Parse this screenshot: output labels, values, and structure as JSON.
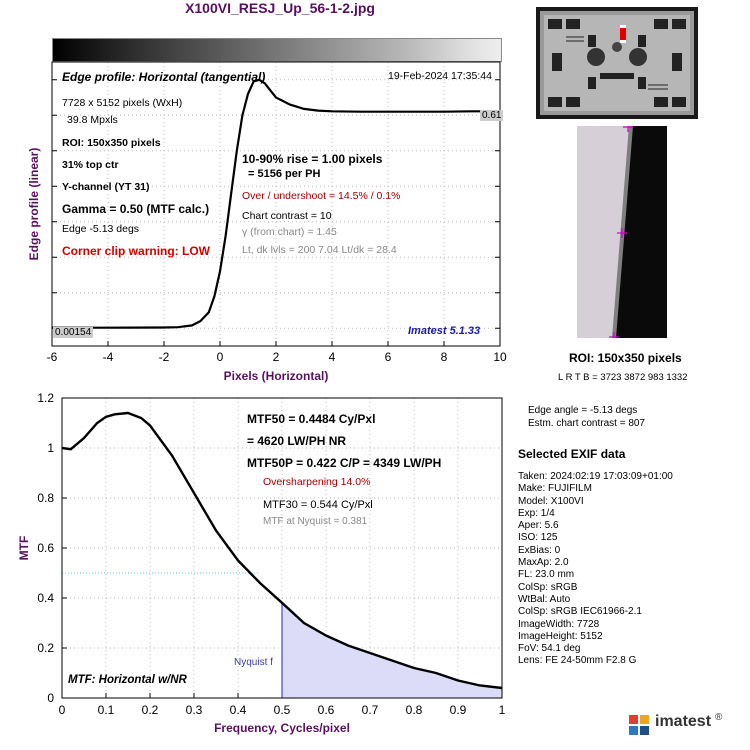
{
  "title": "X100VI_RESJ_Up_56-1-2.jpg",
  "edge": {
    "header": "Edge profile: Horizontal (tangential)",
    "datetime": "19-Feb-2024 17:35:44",
    "pixels": "7728 x 5152 pixels (WxH)",
    "mpxls": "39.8 Mpxls",
    "roi": "ROI:  150x350 pixels",
    "location": "31% top ctr",
    "channel": "Y-channel  (YT 31)",
    "gamma": "Gamma = 0.50 (MTF calc.)",
    "edge_angle": "Edge  -5.13 degs",
    "clip": "Corner clip warning: LOW",
    "rise": "10-90% rise = 1.00 pixels",
    "per_ph": "=   5156 per PH",
    "overshoot": "Over / undershoot = 14.5% /  0.1%",
    "contrast": "Chart contrast = 10",
    "gamma_chart": "γ (from chart) =  1.45",
    "levels": "Lt, dk lvls = 200  7.04  Lt/dk = 28.4",
    "version": "Imatest 5.1.33",
    "high_level": "0.61",
    "low_level": "0.00154"
  },
  "mtf": {
    "mtf50": "MTF50 = 0.4484 Cy/Pxl",
    "lwph": "= 4620 LW/PH  NR",
    "mtf50p": "MTF50P = 0.422 C/P = 4349 LW/PH",
    "oversharp": "Oversharpening 14.0%",
    "mtf30": "MTF30 = 0.544 Cy/Pxl",
    "nyq": "MTF at Nyquist = 0.381",
    "label": "MTF: Horizontal w/NR",
    "nyquist_label": "Nyquist f"
  },
  "roi_panel": {
    "roi": "ROI:  150x350 pixels",
    "coords": "L R  T B = 3723 3872  983 1332",
    "edge_angle": "Edge angle = -5.13 degs",
    "chart_contrast": "Estm. chart contrast = 807"
  },
  "exif": {
    "header": "Selected EXIF data",
    "lines": [
      "Taken: 2024:02:19 17:03:09+01:00",
      "Make:  FUJIFILM",
      "Model:  X100VI",
      "Exp:     1/4",
      "Aper:   5.6",
      "ISO:     125",
      "ExBias: 0",
      "MaxAp: 2.0",
      "FL:      23.0 mm",
      "ColSp: sRGB",
      "WtBal: Auto",
      "ColSp: sRGB IEC61966-2.1",
      "ImageWidth:    7728",
      "ImageHeight:   5152",
      "FoV:    54.1 deg",
      "Lens:  FE 24-50mm F2.8 G"
    ]
  },
  "logo": {
    "text": "imatest",
    "mark": "®"
  },
  "chart_data": [
    {
      "type": "line",
      "title": "",
      "xlabel": "Pixels (Horizontal)",
      "ylabel": "Edge profile (linear)",
      "xlim": [
        -6,
        10
      ],
      "xticks": [
        -6,
        -4,
        -2,
        0,
        2,
        4,
        6,
        8,
        10
      ],
      "series": [
        {
          "x": [
            -6,
            -4,
            -2,
            -1.5,
            -1,
            -0.7,
            -0.4,
            -0.2,
            0,
            0.2,
            0.4,
            0.6,
            0.8,
            1.0,
            1.2,
            1.4,
            1.6,
            1.8,
            2.0,
            2.5,
            3,
            3.5,
            4,
            5,
            6,
            7,
            8,
            9,
            10
          ],
          "y": [
            0.0015,
            0.0015,
            0.002,
            0.003,
            0.008,
            0.02,
            0.045,
            0.09,
            0.16,
            0.26,
            0.38,
            0.5,
            0.6,
            0.66,
            0.695,
            0.7,
            0.69,
            0.67,
            0.65,
            0.63,
            0.618,
            0.613,
            0.611,
            0.61,
            0.61,
            0.61,
            0.61,
            0.611,
            0.611
          ]
        }
      ],
      "grid": true
    },
    {
      "type": "line",
      "title": "",
      "xlabel": "Frequency, Cycles/pixel",
      "ylabel": "MTF",
      "xlim": [
        0,
        1
      ],
      "ylim": [
        0,
        1.2
      ],
      "xticks": [
        0,
        0.1,
        0.2,
        0.3,
        0.4,
        0.5,
        0.6,
        0.7,
        0.8,
        0.9,
        1
      ],
      "yticks": [
        0,
        0.2,
        0.4,
        0.6,
        0.8,
        1,
        1.2
      ],
      "series": [
        {
          "x": [
            0,
            0.02,
            0.05,
            0.08,
            0.1,
            0.12,
            0.15,
            0.18,
            0.2,
            0.25,
            0.3,
            0.35,
            0.4,
            0.45,
            0.5,
            0.55,
            0.6,
            0.65,
            0.7,
            0.75,
            0.8,
            0.85,
            0.9,
            0.95,
            1.0
          ],
          "y": [
            1.0,
            0.995,
            1.04,
            1.1,
            1.125,
            1.135,
            1.14,
            1.12,
            1.09,
            0.97,
            0.82,
            0.67,
            0.55,
            0.46,
            0.381,
            0.3,
            0.25,
            0.21,
            0.18,
            0.15,
            0.12,
            0.1,
            0.07,
            0.05,
            0.04
          ]
        }
      ],
      "grid": true
    }
  ]
}
